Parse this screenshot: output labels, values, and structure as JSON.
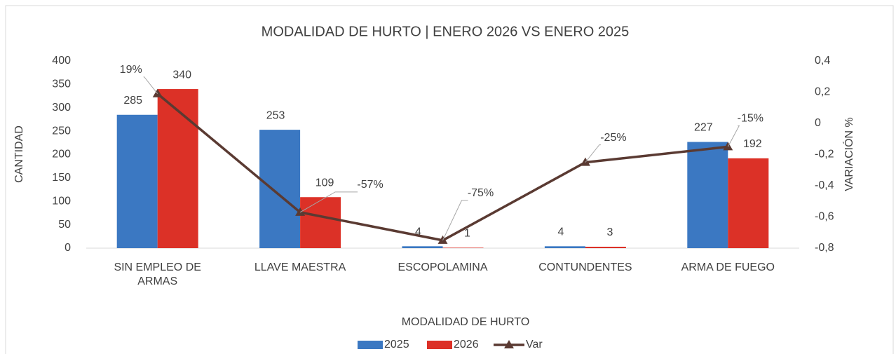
{
  "chart_data": {
    "type": "bar_line",
    "title": "MODALIDAD DE HURTO | ENERO 2026 VS ENERO 2025",
    "ylabel": "CANTIDAD",
    "y2label": "VARIACIÓN %",
    "xlabel": "MODALIDAD DE HURTO",
    "categories": [
      "SIN EMPLEO DE ARMAS",
      "LLAVE MAESTRA",
      "ESCOPOLAMINA",
      "CONTUNDENTES",
      "ARMA DE FUEGO"
    ],
    "series": [
      {
        "name": "2025",
        "color": "#3b78c2",
        "type": "bar",
        "values": [
          285,
          253,
          4,
          4,
          227
        ]
      },
      {
        "name": "2026",
        "color": "#dc3127",
        "type": "bar",
        "values": [
          340,
          109,
          1,
          3,
          192
        ]
      },
      {
        "name": "Var",
        "color": "#5a3a32",
        "type": "line",
        "axis": "y2",
        "values": [
          0.19,
          -0.57,
          -0.75,
          -0.25,
          -0.15
        ],
        "value_labels": [
          "19%",
          "-57%",
          "-75%",
          "-25%",
          "-15%"
        ]
      }
    ],
    "ylim": [
      0,
      400
    ],
    "yticks": [
      0,
      50,
      100,
      150,
      200,
      250,
      300,
      350,
      400
    ],
    "y2lim": [
      -0.8,
      0.4
    ],
    "y2ticks": [
      {
        "value": -0.8,
        "label": "-0,8"
      },
      {
        "value": -0.6,
        "label": "-0,6"
      },
      {
        "value": -0.4,
        "label": "-0,4"
      },
      {
        "value": -0.2,
        "label": "-0,2"
      },
      0,
      {
        "value": 0.2,
        "label": "0,2"
      },
      {
        "value": 0.4,
        "label": "0,4"
      }
    ],
    "grid": false,
    "legend": "bottom"
  }
}
